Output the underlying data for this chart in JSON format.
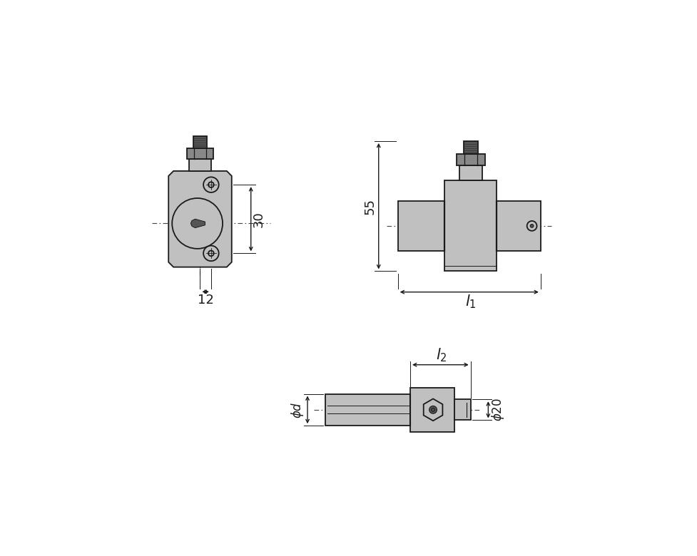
{
  "bg_color": "#ffffff",
  "lc": "#1a1a1a",
  "fc": "#c0c0c0",
  "dc": "#555555",
  "mc": "#888888",
  "lw": 1.3
}
